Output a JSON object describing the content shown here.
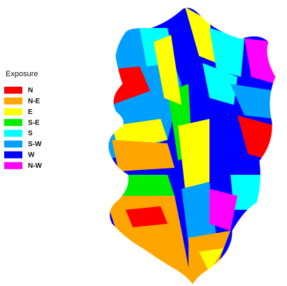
{
  "legend": {
    "title": "Exposure",
    "items": [
      {
        "label": "N",
        "color": "#ff0000"
      },
      {
        "label": "N-E",
        "color": "#ffa500"
      },
      {
        "label": "E",
        "color": "#ffff00"
      },
      {
        "label": "S-E",
        "color": "#00ee00"
      },
      {
        "label": "S",
        "color": "#00ffff"
      },
      {
        "label": "S-W",
        "color": "#00a0ff"
      },
      {
        "label": "W",
        "color": "#0000ff"
      },
      {
        "label": "N-W",
        "color": "#ff00ff"
      }
    ]
  }
}
